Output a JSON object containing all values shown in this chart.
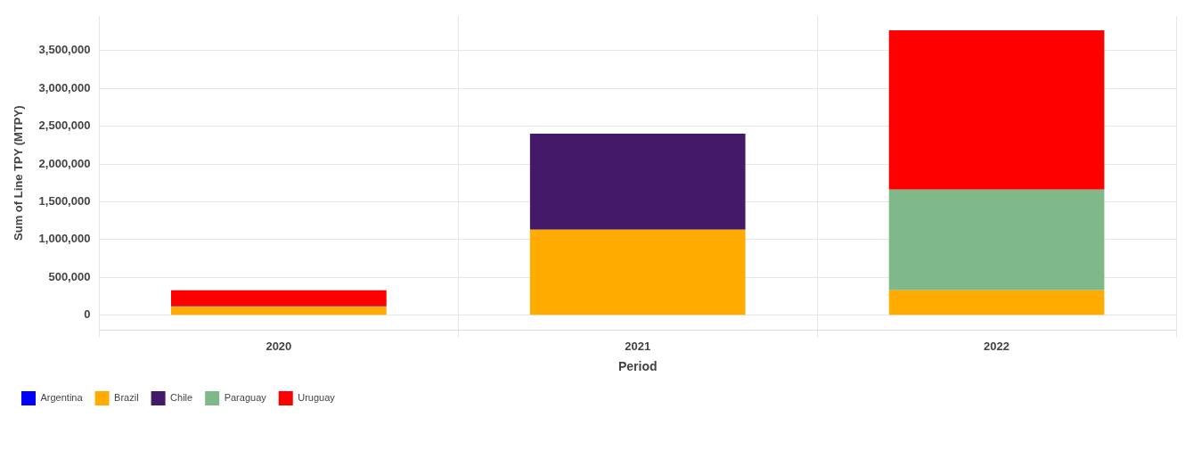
{
  "chart_data": {
    "type": "bar",
    "stacked": true,
    "xlabel": "Period",
    "ylabel": "Sum of Line TPY (MTPY)",
    "categories": [
      "2020",
      "2021",
      "2022"
    ],
    "series": [
      {
        "name": "Argentina",
        "color": "#0000ff",
        "values": [
          null,
          null,
          null
        ]
      },
      {
        "name": "Brazil",
        "color": "#ffab00",
        "values": [
          110000,
          1130000,
          330000
        ]
      },
      {
        "name": "Chile",
        "color": "#45196a",
        "values": [
          10000,
          1270000,
          null
        ]
      },
      {
        "name": "Paraguay",
        "color": "#7fb98a",
        "values": [
          null,
          null,
          1330000
        ]
      },
      {
        "name": "Uruguay",
        "color": "#ff0000",
        "values": [
          210000,
          null,
          2110000
        ]
      }
    ],
    "ylim": [
      -200000,
      3960000
    ],
    "yticks": [
      0,
      {
        "value": 500000,
        "label": "500,000"
      },
      {
        "value": 1000000,
        "label": "1,000,000"
      },
      {
        "value": 1500000,
        "label": "1,500,000"
      },
      {
        "value": 2000000,
        "label": "2,000,000"
      },
      {
        "value": 2500000,
        "label": "2,500,000"
      },
      {
        "value": 3000000,
        "label": "3,000,000"
      },
      {
        "value": 3500000,
        "label": "3,500,000"
      }
    ],
    "grid": true,
    "legend": "bottom"
  }
}
